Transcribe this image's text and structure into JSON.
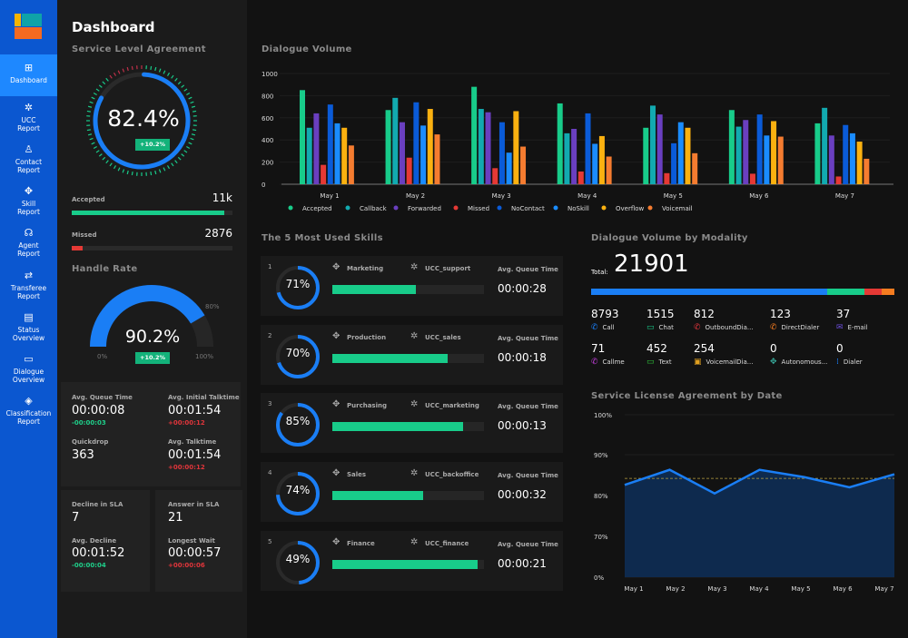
{
  "sidebar": {
    "items": [
      {
        "label1": "Dashboard",
        "label2": "",
        "icon": "dashboard-icon",
        "glyph": "⊞"
      },
      {
        "label1": "UCC",
        "label2": "Report",
        "icon": "network-icon",
        "glyph": "✲"
      },
      {
        "label1": "Contact",
        "label2": "Report",
        "icon": "person-icon",
        "glyph": "♙"
      },
      {
        "label1": "Skill",
        "label2": "Report",
        "icon": "skill-icon",
        "glyph": "✥"
      },
      {
        "label1": "Agent",
        "label2": "Report",
        "icon": "headset-icon",
        "glyph": "☊"
      },
      {
        "label1": "Transferee",
        "label2": "Report",
        "icon": "transfer-icon",
        "glyph": "⇄"
      },
      {
        "label1": "Status",
        "label2": "Overview",
        "icon": "document-icon",
        "glyph": "▤"
      },
      {
        "label1": "Dialogue",
        "label2": "Overview",
        "icon": "chat-icon",
        "glyph": "▭"
      },
      {
        "label1": "Classification",
        "label2": "Report",
        "icon": "tag-icon",
        "glyph": "◈"
      }
    ],
    "active": 0
  },
  "header": {
    "title": "Dashboard"
  },
  "sla": {
    "title": "Service Level Agreement",
    "value": "82.4%",
    "percent": 82.4,
    "delta": "+10.2%",
    "accepted_label": "Accepted",
    "accepted_value": "11k",
    "accepted_fraction": 0.95,
    "missed_label": "Missed",
    "missed_value": "2876",
    "missed_fraction": 0.07
  },
  "handle_rate": {
    "title": "Handle Rate",
    "value": "90.2%",
    "percent": 90.2,
    "delta": "+10.2%",
    "min": "0%",
    "mark": "80%",
    "max": "100%"
  },
  "stats": {
    "avg_queue_label": "Avg. Queue Time",
    "avg_queue": "00:00:08",
    "avg_queue_delta": "-00:00:03",
    "avg_init_label": "Avg. Initial Talktime",
    "avg_init": "00:01:54",
    "avg_init_delta": "+00:00:12",
    "quickdrop_label": "Quickdrop",
    "quickdrop": "363",
    "avg_talk_label": "Avg. Talktime",
    "avg_talk": "00:01:54",
    "avg_talk_delta": "+00:00:12",
    "decline_label": "Decline in SLA",
    "decline": "7",
    "avg_decline_label": "Avg. Decline",
    "avg_decline": "00:01:52",
    "avg_decline_delta": "-00:00:04",
    "answer_label": "Answer in SLA",
    "answer": "21",
    "longest_label": "Longest Wait",
    "longest": "00:00:57",
    "longest_delta": "+00:00:06"
  },
  "dialogue_volume": {
    "title": "Dialogue Volume"
  },
  "skills": {
    "title": "The 5 Most Used Skills",
    "queue_label": "Avg. Queue Time",
    "items": [
      {
        "rank": "1",
        "percent": 71,
        "pct": "71%",
        "name": "Marketing",
        "ucc": "UCC_support",
        "queue": "00:00:28",
        "bar": 0.55
      },
      {
        "rank": "2",
        "percent": 70,
        "pct": "70%",
        "name": "Production",
        "ucc": "UCC_sales",
        "queue": "00:00:18",
        "bar": 0.76
      },
      {
        "rank": "3",
        "percent": 85,
        "pct": "85%",
        "name": "Purchasing",
        "ucc": "UCC_marketing",
        "queue": "00:00:13",
        "bar": 0.86
      },
      {
        "rank": "4",
        "percent": 74,
        "pct": "74%",
        "name": "Sales",
        "ucc": "UCC_backoffice",
        "queue": "00:00:32",
        "bar": 0.6
      },
      {
        "rank": "5",
        "percent": 49,
        "pct": "49%",
        "name": "Finance",
        "ucc": "UCC_finance",
        "queue": "00:00:21",
        "bar": 0.96
      }
    ]
  },
  "modality": {
    "title": "Dialogue Volume by Modality",
    "total_label": "Total:",
    "total": "21901",
    "segments": [
      {
        "fraction": 0.777,
        "color": "#1a7ef5"
      },
      {
        "fraction": 0.123,
        "color": "#18cc8a"
      },
      {
        "fraction": 0.057,
        "color": "#e53935"
      },
      {
        "fraction": 0.043,
        "color": "#f57c20"
      }
    ],
    "items": [
      {
        "value": "8793",
        "label": "Call",
        "icon": "phone-icon",
        "glyph": "✆",
        "color": "#1a7ef5"
      },
      {
        "value": "1515",
        "label": "Chat",
        "icon": "chat-icon",
        "glyph": "▭",
        "color": "#18cc8a"
      },
      {
        "value": "812",
        "label": "OutboundDia...",
        "icon": "outbound-call-icon",
        "glyph": "✆",
        "color": "#e0353b"
      },
      {
        "value": "123",
        "label": "DirectDialer",
        "icon": "direct-dialer-icon",
        "glyph": "✆",
        "color": "#f57c20"
      },
      {
        "value": "37",
        "label": "E-mail",
        "icon": "email-icon",
        "glyph": "✉",
        "color": "#6a4cd8"
      },
      {
        "value": "71",
        "label": "Callme",
        "icon": "callme-icon",
        "glyph": "✆",
        "color": "#c03ed8"
      },
      {
        "value": "452",
        "label": "Text",
        "icon": "text-message-icon",
        "glyph": "▭",
        "color": "#2fc43a"
      },
      {
        "value": "254",
        "label": "VoicemailDia...",
        "icon": "voicemail-icon",
        "glyph": "▣",
        "color": "#e0a020"
      },
      {
        "value": "0",
        "label": "Autonomous...",
        "icon": "autonomous-icon",
        "glyph": "✥",
        "color": "#38b0a0"
      },
      {
        "value": "0",
        "label": "Dialer",
        "icon": "dialer-icon",
        "glyph": "⁞",
        "color": "#1a7ef5"
      }
    ]
  },
  "chart_data": [
    {
      "type": "bar",
      "title": "Dialogue Volume",
      "ylim": [
        0,
        1000
      ],
      "yticks": [
        0,
        200,
        400,
        600,
        800,
        1000
      ],
      "grid": true,
      "legend": "bottom",
      "categories": [
        "May 1",
        "May 2",
        "May 3",
        "May 4",
        "May 5",
        "May 6",
        "May 7"
      ],
      "series": [
        {
          "name": "Accepted",
          "color": "#18cc8a",
          "values": [
            850,
            670,
            880,
            730,
            510,
            670,
            550
          ]
        },
        {
          "name": "Callback",
          "color": "#12aab0",
          "values": [
            510,
            780,
            680,
            460,
            710,
            520,
            690
          ]
        },
        {
          "name": "Forwarded",
          "color": "#6a3fc0",
          "values": [
            640,
            560,
            650,
            500,
            630,
            580,
            440
          ]
        },
        {
          "name": "Missed",
          "color": "#e53935",
          "values": [
            175,
            240,
            145,
            115,
            100,
            95,
            70
          ]
        },
        {
          "name": "NoContact",
          "color": "#0a5bd8",
          "values": [
            720,
            740,
            560,
            640,
            370,
            630,
            535
          ]
        },
        {
          "name": "NoSkill",
          "color": "#1a8cff",
          "values": [
            550,
            530,
            285,
            365,
            560,
            440,
            460
          ]
        },
        {
          "name": "Overflow",
          "color": "#fbb110",
          "values": [
            510,
            680,
            660,
            435,
            510,
            570,
            385
          ]
        },
        {
          "name": "Voicemail",
          "color": "#f57c30",
          "values": [
            350,
            450,
            340,
            250,
            280,
            430,
            230
          ]
        }
      ]
    },
    {
      "type": "area",
      "title": "Service License Agreement by Date",
      "yticks": [
        "0%",
        "70%",
        "80%",
        "90%",
        "100%"
      ],
      "ytick_values": [
        0,
        70,
        80,
        90,
        100
      ],
      "grid": true,
      "categories": [
        "May 1",
        "May 2",
        "May 3",
        "May 4",
        "May 5",
        "May 6",
        "May 7"
      ],
      "values": [
        82.6,
        86.3,
        80.5,
        86.3,
        84.5,
        82.0,
        85.2
      ],
      "target": 84.2,
      "color": "#1a7ef5"
    }
  ]
}
